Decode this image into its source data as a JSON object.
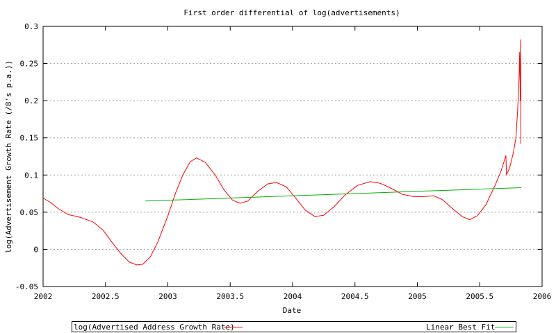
{
  "chart_data": {
    "type": "line",
    "title": "First order differential of log(advertisements)",
    "xlabel": "Date",
    "ylabel": "log(Advertisement Growth Rate (/8's p.a.))",
    "xlim": [
      2002,
      2006
    ],
    "ylim": [
      -0.05,
      0.3
    ],
    "x_ticks": [
      "2002",
      "2002.5",
      "2003",
      "2003.5",
      "2004",
      "2004.5",
      "2005",
      "2005.5",
      "2006"
    ],
    "y_ticks": [
      "-0.05",
      "0",
      "0.05",
      "0.1",
      "0.15",
      "0.2",
      "0.25",
      "0.3"
    ],
    "grid": "horizontal dotted at y ticks",
    "legend_position": "bottom",
    "series": [
      {
        "name": "log(Advertised Address Growth Rate)",
        "color": "#ff0000",
        "points": [
          [
            2002.0,
            0.069
          ],
          [
            2002.06,
            0.063
          ],
          [
            2002.12,
            0.055
          ],
          [
            2002.2,
            0.047
          ],
          [
            2002.3,
            0.043
          ],
          [
            2002.4,
            0.037
          ],
          [
            2002.48,
            0.026
          ],
          [
            2002.55,
            0.01
          ],
          [
            2002.62,
            -0.005
          ],
          [
            2002.69,
            -0.017
          ],
          [
            2002.75,
            -0.021
          ],
          [
            2002.8,
            -0.02
          ],
          [
            2002.86,
            -0.01
          ],
          [
            2002.92,
            0.01
          ],
          [
            2003.0,
            0.045
          ],
          [
            2003.06,
            0.075
          ],
          [
            2003.12,
            0.1
          ],
          [
            2003.18,
            0.118
          ],
          [
            2003.23,
            0.123
          ],
          [
            2003.3,
            0.117
          ],
          [
            2003.38,
            0.1
          ],
          [
            2003.45,
            0.08
          ],
          [
            2003.52,
            0.066
          ],
          [
            2003.58,
            0.062
          ],
          [
            2003.64,
            0.065
          ],
          [
            2003.72,
            0.078
          ],
          [
            2003.8,
            0.088
          ],
          [
            2003.87,
            0.09
          ],
          [
            2003.95,
            0.084
          ],
          [
            2004.02,
            0.07
          ],
          [
            2004.1,
            0.053
          ],
          [
            2004.18,
            0.044
          ],
          [
            2004.25,
            0.046
          ],
          [
            2004.33,
            0.057
          ],
          [
            2004.42,
            0.073
          ],
          [
            2004.52,
            0.086
          ],
          [
            2004.62,
            0.091
          ],
          [
            2004.7,
            0.089
          ],
          [
            2004.78,
            0.083
          ],
          [
            2004.88,
            0.074
          ],
          [
            2004.97,
            0.071
          ],
          [
            2005.05,
            0.071
          ],
          [
            2005.13,
            0.072
          ],
          [
            2005.2,
            0.067
          ],
          [
            2005.28,
            0.055
          ],
          [
            2005.36,
            0.044
          ],
          [
            2005.42,
            0.04
          ],
          [
            2005.48,
            0.045
          ],
          [
            2005.55,
            0.06
          ],
          [
            2005.62,
            0.085
          ],
          [
            2005.67,
            0.105
          ],
          [
            2005.71,
            0.126
          ],
          [
            2005.715,
            0.1
          ],
          [
            2005.74,
            0.11
          ],
          [
            2005.77,
            0.13
          ],
          [
            2005.79,
            0.15
          ],
          [
            2005.805,
            0.19
          ],
          [
            2005.815,
            0.23
          ],
          [
            2005.82,
            0.265
          ],
          [
            2005.825,
            0.2
          ],
          [
            2005.828,
            0.282
          ],
          [
            2005.83,
            0.142
          ]
        ]
      },
      {
        "name": "Linear Best Fit",
        "color": "#00b000",
        "points": [
          [
            2002.82,
            0.065
          ],
          [
            2005.83,
            0.083
          ]
        ]
      }
    ]
  }
}
